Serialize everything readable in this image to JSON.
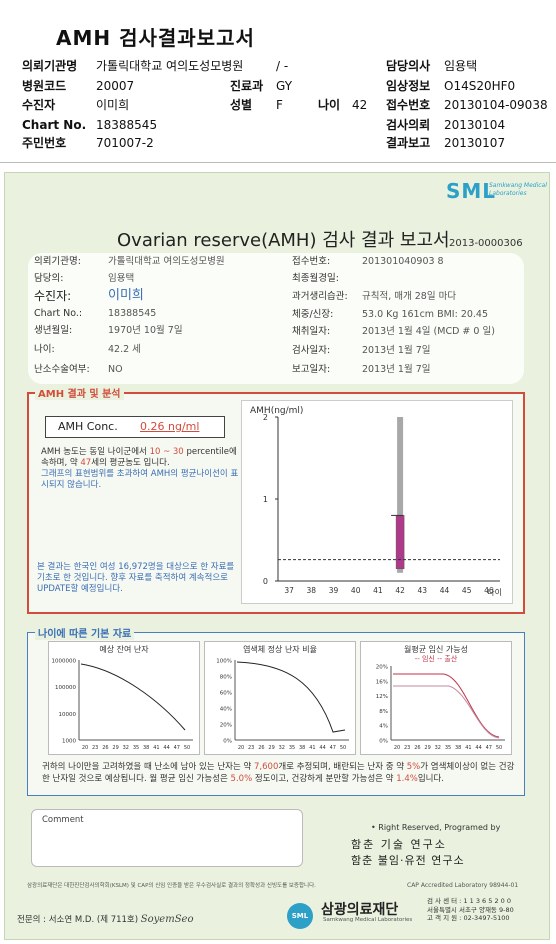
{
  "header": {
    "title": "AMH 검사결과보고서",
    "rows": [
      {
        "l1": "의뢰기관명",
        "v1": "가톨릭대학교 여의도성모병원",
        "l2": "",
        "v2": "/ -",
        "l3": "",
        "v3": "",
        "l4": "담당의사",
        "v4": "임용택"
      },
      {
        "l1": "병원코드",
        "v1": "20007",
        "l2": "진료과",
        "v2": "GY",
        "l3": "",
        "v3": "",
        "l4": "임상정보",
        "v4": "O14S20HF0"
      },
      {
        "l1": "수진자",
        "v1": "이미희",
        "l2": "성별",
        "v2": "F",
        "l3": "나이",
        "v3": "42",
        "l4": "접수번호",
        "v4": "20130104-09038"
      },
      {
        "l1": "Chart No.",
        "v1": "18388545",
        "l2": "",
        "v2": "",
        "l3": "",
        "v3": "",
        "l4": "검사의뢰",
        "v4": "20130104"
      },
      {
        "l1": "주민번호",
        "v1": "701007-2",
        "l2": "",
        "v2": "",
        "l3": "",
        "v3": "",
        "l4": "결과보고",
        "v4": "20130107"
      }
    ]
  },
  "sheet": {
    "brand": "SML",
    "brand_sub": "Samkwang Medical Laboratories",
    "title": "Ovarian reserve(AMH) 검사 결과 보고서",
    "code": "2013-0000306",
    "left": [
      {
        "label": "의뢰기관명:",
        "value": "가톨릭대학교 여의도성모병원"
      },
      {
        "label": "담당의:",
        "value": "임용택"
      },
      {
        "label": "수진자:",
        "value": "이미희"
      },
      {
        "label": "Chart No.:",
        "value": "18388545"
      },
      {
        "label": "생년월일:",
        "value": "1970년 10월 7일"
      },
      {
        "label": "나이:",
        "value": "42.2 세"
      },
      {
        "label": "난소수술여부:",
        "value": "NO"
      }
    ],
    "right": [
      {
        "label": "접수번호:",
        "value": "201301040903 8"
      },
      {
        "label": "최종월경일:",
        "value": ""
      },
      {
        "label": "과거생리습관:",
        "value": "규칙적,  매개  28일 마다"
      },
      {
        "label": "체중/신장:",
        "value": "53.0 Kg    161cm    BMI:  20.45"
      },
      {
        "label": "채취일자:",
        "value": "2013년 1월 4일    (MCD # 0 일)"
      },
      {
        "label": "검사일자:",
        "value": "2013년 1월 7일"
      },
      {
        "label": "보고일자:",
        "value": "2013년 1월 7일"
      }
    ]
  },
  "amh": {
    "heading": "AMH 결과 및 분석",
    "conc_label": "AMH Conc.",
    "conc_value": "0.26",
    "conc_unit": "ng/ml",
    "text1": "AMH 농도는 동일 나이군에서",
    "pct": "10 ~ 30",
    "text2": "percentile에 속하며, 약",
    "age_eq": "47",
    "text3": "세의 평균농도 입니다.",
    "text4": "그래프의 표현범위를 초과하여 AMH의 평균나이선이 표시되지 않습니다.",
    "note": "본 결과는 한국인 여성 16,972명을 대상으로 한 자료를 기초로 한 것입니다. 향후 자료를 축적하여 계속적으로 UPDATE할 예정입니다."
  },
  "chart_data": [
    {
      "type": "bar",
      "ylabel": "AMH(ng/ml)",
      "xlabel": "나이",
      "categories": [
        "37",
        "38",
        "39",
        "40",
        "41",
        "42",
        "43",
        "44",
        "45",
        "46"
      ],
      "ylim": [
        0,
        2
      ],
      "yticks": [
        "0",
        "1",
        "2"
      ],
      "range_bar": {
        "x": "42",
        "low": 0.1,
        "high": 2.0
      },
      "box": {
        "x": "42",
        "low": 0.15,
        "high": 0.8
      },
      "value_line": 0.26,
      "colors": {
        "range": "#a8a8a8",
        "box": "#b03a8a",
        "line": "#333333"
      }
    },
    {
      "type": "line",
      "title": "예상 잔여 난자",
      "yticks": [
        "1000000",
        "100000",
        "10000",
        "1000"
      ],
      "xticks": [
        "20",
        "23",
        "26",
        "29",
        "32",
        "35",
        "38",
        "41",
        "44",
        "47",
        "50"
      ]
    },
    {
      "type": "line",
      "title": "염색체 정상 난자 비율",
      "yticks": [
        "100%",
        "80%",
        "60%",
        "40%",
        "20%",
        "0%"
      ],
      "xticks": [
        "20",
        "23",
        "26",
        "29",
        "32",
        "35",
        "38",
        "41",
        "44",
        "47",
        "50"
      ]
    },
    {
      "type": "line",
      "title": "월평균 임신 가능성",
      "legend": "-- 임신  -- 출산",
      "yticks": [
        "20%",
        "16%",
        "12%",
        "8%",
        "4%",
        "0%"
      ],
      "xticks": [
        "20",
        "23",
        "26",
        "29",
        "32",
        "35",
        "38",
        "41",
        "44",
        "47",
        "50"
      ],
      "colors": {
        "pregnancy": "#c0334a",
        "birth": "#c48aa0"
      }
    }
  ],
  "age_section": {
    "heading": "나이에 따른 기본 자료",
    "text_a": "귀하의 나이만을 고려하였을 때 난소에 남아 있는 난자는 약",
    "eggs": "7,600",
    "text_b": "개로 추정되며, 배란되는 난자 중 약",
    "normal_pct": "5%",
    "text_c": "가 염색체이상이 없는 건강한 난자일 것으로 예상됩니다. 월 평균 임신 가능성은",
    "preg_pct": "5.0%",
    "text_d": "정도이고, 건강하게 분만할 가능성은 약",
    "birth_pct": "1.4%",
    "text_e": "입니다."
  },
  "footer": {
    "comment_label": "Comment",
    "rights": "• Right Reserved, Programed by",
    "lab1": "함춘 기술 연구소",
    "lab2": "함춘 불임·유전 연구소",
    "fine": "삼광의료재단은 대한진단검사의학회(KSLM) 및 CAP의 신임 인증을 받은 우수검사실로 결과의 정확성과 신빙도를 보증합니다.",
    "cap": "CAP Accredited Laboratory  98944-01",
    "signer": "전문의 : 서소연 M.D. (제 711호)",
    "signature": "SoyemSeo",
    "org_logo": "SML",
    "org": "삼광의료재단",
    "org_en": "Samkwang Medical Laboratories",
    "address": "검 사 센 터 : 1 1 3 6 5 2 0 0\n서울특별시 서초구 양재동 9-80\n고 객 지 원 : 02-3497-5100"
  }
}
